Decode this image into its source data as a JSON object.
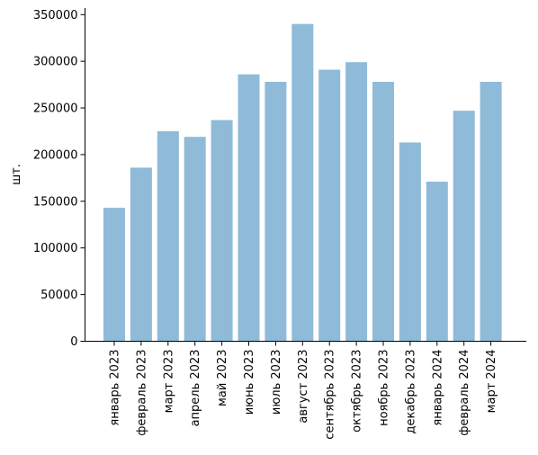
{
  "chart_data": {
    "type": "bar",
    "title": "",
    "xlabel": "",
    "ylabel": "шт.",
    "categories": [
      "январь 2023",
      "февраль 2023",
      "март 2023",
      "апрель 2023",
      "май 2023",
      "июнь 2023",
      "июль 2023",
      "август 2023",
      "сентябрь 2023",
      "октябрь 2023",
      "ноябрь 2023",
      "декабрь 2023",
      "январь 2024",
      "февраль 2024",
      "март 2024"
    ],
    "values": [
      143000,
      186000,
      225000,
      219000,
      237000,
      286000,
      278000,
      340000,
      291000,
      299000,
      278000,
      213000,
      171000,
      247000,
      278000
    ],
    "ylim": [
      0,
      357000
    ],
    "yticks": [
      0,
      50000,
      100000,
      150000,
      200000,
      250000,
      300000,
      350000
    ],
    "grid": false,
    "colors": {
      "bar": "#8fbbd9",
      "axis": "#000000"
    }
  }
}
